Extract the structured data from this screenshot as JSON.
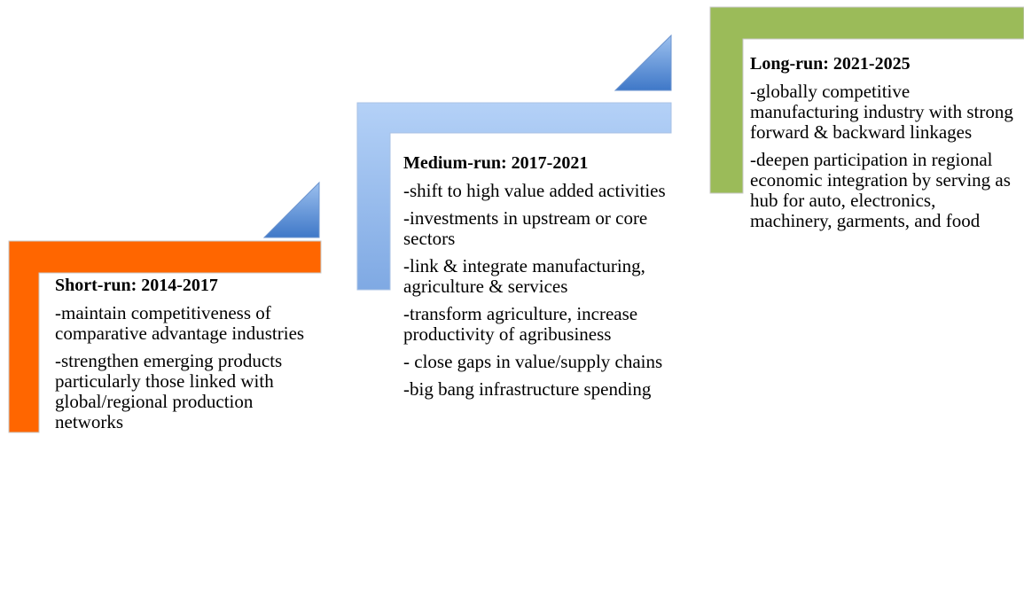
{
  "stages": [
    {
      "title": "Short-run: 2014-2017",
      "items": [
        "-maintain competitiveness of comparative advantage industries",
        "-strengthen emerging products particularly those linked with global/regional production networks"
      ]
    },
    {
      "title": "Medium-run: 2017-2021",
      "items": [
        "-shift to high value added activities",
        "-investments in upstream or core sectors",
        "-link & integrate manufacturing, agriculture & services",
        "-transform agriculture, increase productivity of agribusiness",
        "- close gaps in value/supply chains",
        "-big bang infrastructure spending"
      ]
    },
    {
      "title": "Long-run: 2021-2025",
      "items": [
        "-globally competitive manufacturing industry with strong forward & backward linkages",
        "-deepen participation in regional economic integration by serving as hub for auto, electronics, machinery, garments, and food"
      ]
    }
  ]
}
